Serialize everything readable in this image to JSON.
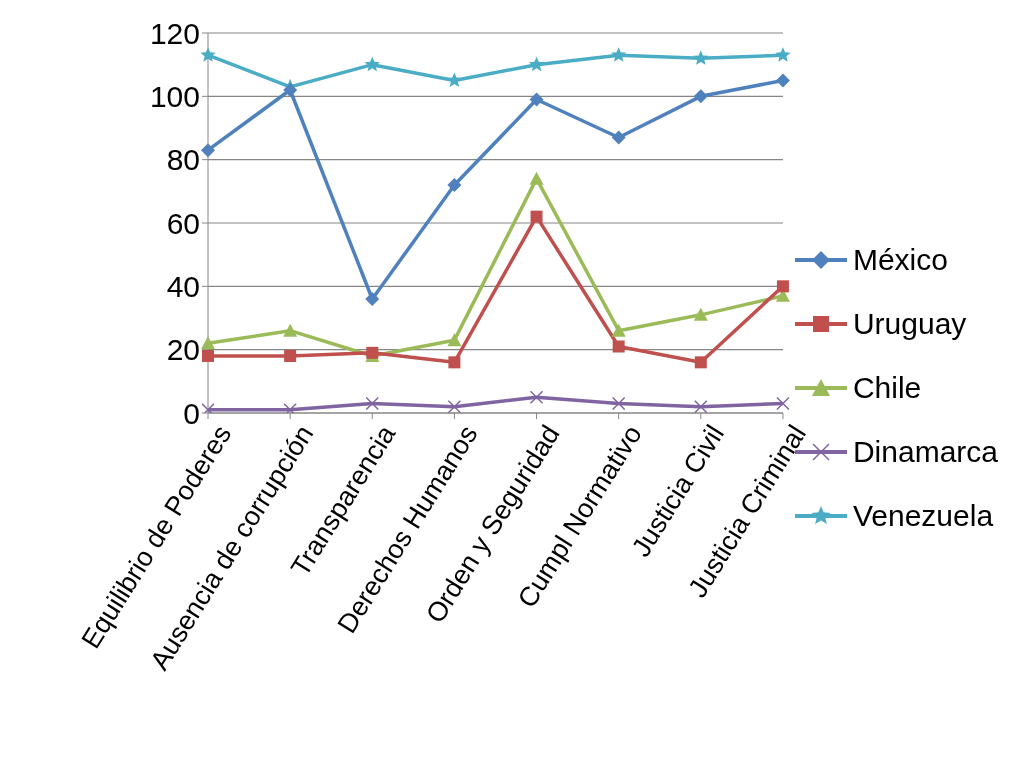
{
  "chart_data": {
    "type": "line",
    "categories": [
      "Equilibrio de Poderes",
      "Ausencia de corrupción",
      "Transparencia",
      "Derechos Humanos",
      "Orden y Seguridad",
      "Cumpl Normativo",
      "Justicia Civil",
      "Justicia Criminal"
    ],
    "series": [
      {
        "name": "México",
        "color": "#4f81bd",
        "marker": "diamond",
        "values": [
          83,
          102,
          36,
          72,
          99,
          87,
          100,
          105
        ]
      },
      {
        "name": "Uruguay",
        "color": "#c0504d",
        "marker": "square",
        "values": [
          18,
          18,
          19,
          16,
          62,
          21,
          16,
          40
        ]
      },
      {
        "name": "Chile",
        "color": "#9bbb59",
        "marker": "triangle",
        "values": [
          22,
          26,
          18,
          23,
          74,
          26,
          31,
          37
        ]
      },
      {
        "name": "Dinamarca",
        "color": "#8064a2",
        "marker": "cross",
        "values": [
          1,
          1,
          3,
          2,
          5,
          3,
          2,
          3
        ]
      },
      {
        "name": "Venezuela",
        "color": "#4bacc6",
        "marker": "star",
        "values": [
          113,
          103,
          110,
          105,
          110,
          113,
          112,
          113
        ]
      }
    ],
    "ylim": [
      0,
      120
    ],
    "yticks": [
      0,
      20,
      40,
      60,
      80,
      100,
      120
    ],
    "grid": "y",
    "legend": "right",
    "line_style": "solid"
  }
}
